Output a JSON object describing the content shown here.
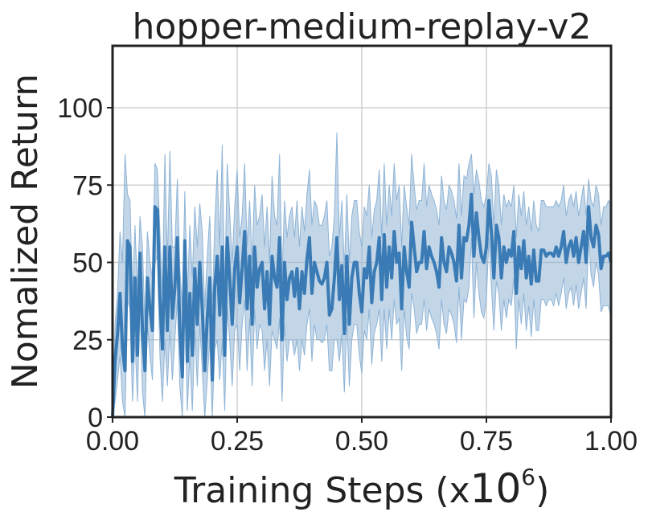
{
  "chart_data": {
    "type": "line",
    "title": "hopper-medium-replay-v2",
    "xlabel": "Training Steps (x",
    "xlabel_exponent_base": "10",
    "xlabel_exponent": "6",
    "xlabel_close": ")",
    "ylabel": "Nomalized Return",
    "xlim": [
      0,
      1.0
    ],
    "ylim": [
      0,
      120
    ],
    "xticks": [
      "0.00",
      "0.25",
      "0.50",
      "0.75",
      "1.00"
    ],
    "xtick_values": [
      0,
      0.25,
      0.5,
      0.75,
      1.0
    ],
    "yticks": [
      "0",
      "25",
      "50",
      "75",
      "100"
    ],
    "ytick_values": [
      0,
      25,
      50,
      75,
      100
    ],
    "grid": true,
    "colors": {
      "line": "#3a7bb5",
      "band": "#8fb4d6"
    },
    "series": [
      {
        "x": [
          0,
          0.005,
          0.01,
          0.015,
          0.02,
          0.025,
          0.03,
          0.035,
          0.04,
          0.045,
          0.05,
          0.055,
          0.06,
          0.065,
          0.07,
          0.075,
          0.08,
          0.085,
          0.09,
          0.095,
          0.1,
          0.105,
          0.11,
          0.115,
          0.12,
          0.125,
          0.13,
          0.135,
          0.14,
          0.145,
          0.15,
          0.155,
          0.16,
          0.165,
          0.17,
          0.175,
          0.18,
          0.185,
          0.19,
          0.195,
          0.2,
          0.205,
          0.21,
          0.215,
          0.22,
          0.225,
          0.23,
          0.235,
          0.24,
          0.245,
          0.25,
          0.255,
          0.26,
          0.265,
          0.27,
          0.275,
          0.28,
          0.285,
          0.29,
          0.295,
          0.3,
          0.305,
          0.31,
          0.315,
          0.32,
          0.325,
          0.33,
          0.335,
          0.34,
          0.345,
          0.35,
          0.355,
          0.36,
          0.365,
          0.37,
          0.375,
          0.38,
          0.385,
          0.39,
          0.395,
          0.4,
          0.405,
          0.41,
          0.415,
          0.42,
          0.425,
          0.43,
          0.435,
          0.44,
          0.445,
          0.45,
          0.455,
          0.46,
          0.465,
          0.47,
          0.475,
          0.48,
          0.485,
          0.49,
          0.495,
          0.5,
          0.505,
          0.51,
          0.515,
          0.52,
          0.525,
          0.53,
          0.535,
          0.54,
          0.545,
          0.55,
          0.555,
          0.56,
          0.565,
          0.57,
          0.575,
          0.58,
          0.585,
          0.59,
          0.595,
          0.6,
          0.605,
          0.61,
          0.615,
          0.62,
          0.625,
          0.63,
          0.635,
          0.64,
          0.645,
          0.65,
          0.655,
          0.66,
          0.665,
          0.67,
          0.675,
          0.68,
          0.685,
          0.69,
          0.695,
          0.7,
          0.705,
          0.71,
          0.715,
          0.72,
          0.725,
          0.73,
          0.735,
          0.74,
          0.745,
          0.75,
          0.755,
          0.76,
          0.765,
          0.77,
          0.775,
          0.78,
          0.785,
          0.79,
          0.795,
          0.8,
          0.805,
          0.81,
          0.815,
          0.82,
          0.825,
          0.83,
          0.835,
          0.84,
          0.845,
          0.85,
          0.855,
          0.86,
          0.865,
          0.87,
          0.875,
          0.88,
          0.885,
          0.89,
          0.895,
          0.9,
          0.905,
          0.91,
          0.915,
          0.92,
          0.925,
          0.93,
          0.935,
          0.94,
          0.945,
          0.95,
          0.955,
          0.96,
          0.965,
          0.97,
          0.975,
          0.98,
          0.985,
          0.99,
          0.995,
          1.0
        ],
        "y": [
          0,
          18,
          27,
          40,
          22,
          15,
          57,
          55,
          18,
          45,
          20,
          53,
          28,
          15,
          45,
          35,
          28,
          68,
          67,
          38,
          22,
          55,
          28,
          55,
          32,
          42,
          58,
          28,
          13,
          57,
          18,
          40,
          20,
          48,
          30,
          50,
          35,
          15,
          32,
          45,
          12,
          42,
          52,
          33,
          55,
          20,
          58,
          45,
          30,
          48,
          55,
          37,
          48,
          60,
          35,
          52,
          30,
          55,
          42,
          48,
          50,
          35,
          47,
          30,
          52,
          45,
          42,
          58,
          25,
          50,
          38,
          45,
          47,
          39,
          48,
          35,
          47,
          40,
          51,
          58,
          40,
          50,
          47,
          44,
          43,
          45,
          50,
          33,
          35,
          45,
          58,
          38,
          49,
          27,
          52,
          30,
          45,
          50,
          50,
          40,
          34,
          48,
          45,
          55,
          37,
          47,
          50,
          58,
          38,
          59,
          42,
          55,
          45,
          60,
          50,
          53,
          35,
          55,
          47,
          42,
          63,
          55,
          47,
          50,
          50,
          60,
          48,
          55,
          52,
          50,
          47,
          42,
          58,
          50,
          47,
          55,
          53,
          50,
          44,
          62,
          45,
          58,
          57,
          62,
          72,
          52,
          66,
          58,
          52,
          50,
          55,
          70,
          60,
          45,
          62,
          58,
          45,
          55,
          50,
          54,
          52,
          60,
          40,
          55,
          48,
          57,
          45,
          52,
          43,
          54,
          44,
          44,
          54,
          54,
          52,
          53,
          53,
          52,
          55,
          52,
          55,
          60,
          50,
          55,
          57,
          52,
          58,
          50,
          55,
          60,
          50,
          68,
          58,
          55,
          62,
          59,
          48,
          52,
          52,
          53,
          50
        ],
        "upper": [
          0,
          30,
          40,
          60,
          50,
          85,
          72,
          70,
          40,
          62,
          40,
          65,
          55,
          30,
          60,
          50,
          45,
          82,
          80,
          60,
          40,
          85,
          50,
          86,
          55,
          55,
          77,
          48,
          35,
          73,
          38,
          62,
          45,
          68,
          55,
          69,
          60,
          35,
          52,
          65,
          35,
          62,
          80,
          55,
          88,
          40,
          82,
          66,
          50,
          68,
          80,
          58,
          65,
          82,
          55,
          70,
          50,
          75,
          62,
          65,
          72,
          55,
          68,
          50,
          78,
          65,
          62,
          85,
          45,
          70,
          58,
          65,
          68,
          58,
          70,
          55,
          68,
          60,
          72,
          80,
          62,
          70,
          68,
          62,
          62,
          65,
          70,
          52,
          55,
          65,
          92,
          58,
          70,
          48,
          72,
          50,
          65,
          70,
          70,
          60,
          55,
          68,
          65,
          75,
          58,
          67,
          70,
          80,
          58,
          82,
          62,
          75,
          65,
          82,
          70,
          75,
          55,
          75,
          68,
          62,
          85,
          75,
          67,
          70,
          70,
          82,
          68,
          75,
          72,
          70,
          67,
          62,
          78,
          70,
          67,
          75,
          73,
          70,
          64,
          82,
          65,
          78,
          77,
          82,
          85,
          72,
          80,
          76,
          70,
          68,
          72,
          82,
          78,
          62,
          80,
          75,
          62,
          72,
          68,
          70,
          68,
          75,
          58,
          72,
          65,
          73,
          62,
          68,
          60,
          70,
          62,
          60,
          70,
          70,
          68,
          68,
          68,
          68,
          70,
          68,
          70,
          75,
          65,
          70,
          72,
          68,
          73,
          65,
          70,
          75,
          65,
          77,
          70,
          68,
          75,
          72,
          62,
          68,
          68,
          70,
          68
        ],
        "lower": [
          0,
          5,
          12,
          20,
          5,
          0,
          38,
          35,
          5,
          25,
          5,
          38,
          8,
          0,
          30,
          20,
          12,
          50,
          52,
          20,
          5,
          25,
          10,
          28,
          12,
          25,
          38,
          10,
          0,
          40,
          2,
          20,
          2,
          28,
          10,
          30,
          15,
          0,
          12,
          25,
          0,
          22,
          25,
          12,
          25,
          2,
          35,
          25,
          10,
          28,
          30,
          15,
          30,
          38,
          15,
          32,
          10,
          35,
          22,
          30,
          28,
          15,
          25,
          10,
          28,
          25,
          22,
          32,
          5,
          30,
          18,
          25,
          25,
          20,
          25,
          15,
          25,
          20,
          30,
          35,
          18,
          30,
          25,
          25,
          24,
          25,
          30,
          15,
          15,
          25,
          25,
          18,
          27,
          8,
          32,
          10,
          25,
          30,
          30,
          20,
          14,
          28,
          25,
          35,
          17,
          27,
          30,
          35,
          18,
          35,
          22,
          35,
          25,
          38,
          30,
          32,
          15,
          35,
          26,
          22,
          40,
          35,
          27,
          30,
          30,
          38,
          28,
          35,
          32,
          30,
          27,
          22,
          38,
          30,
          27,
          35,
          33,
          30,
          24,
          42,
          25,
          38,
          37,
          42,
          58,
          32,
          50,
          40,
          34,
          32,
          38,
          58,
          42,
          28,
          44,
          40,
          28,
          38,
          32,
          38,
          36,
          45,
          22,
          38,
          30,
          40,
          28,
          36,
          26,
          38,
          28,
          28,
          38,
          38,
          36,
          38,
          38,
          36,
          40,
          36,
          40,
          45,
          35,
          40,
          42,
          36,
          43,
          35,
          40,
          45,
          35,
          58,
          46,
          42,
          50,
          46,
          34,
          36,
          36,
          36,
          32
        ]
      }
    ]
  }
}
